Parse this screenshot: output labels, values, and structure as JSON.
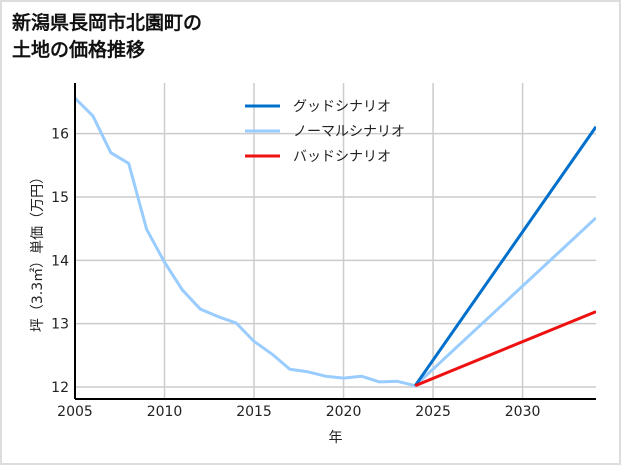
{
  "title_lines": [
    "新潟県長岡市北園町の",
    "土地の価格推移"
  ],
  "chart_data": {
    "type": "line",
    "title": "新潟県長岡市北園町の土地の価格推移",
    "xlabel": "年",
    "ylabel": "坪（3.3㎡）単価（万円）",
    "xlim": [
      2005,
      2034.1
    ],
    "ylim": [
      11.81,
      16.8
    ],
    "xticks": [
      2005,
      2010,
      2015,
      2020,
      2025,
      2030
    ],
    "yticks": [
      12,
      13,
      14,
      15,
      16
    ],
    "grid": true,
    "legend_position": "top-center",
    "series": [
      {
        "name": "グッドシナリオ",
        "color": "#0070cc",
        "x": [
          2024,
          2034.1
        ],
        "y": [
          12.02,
          16.11
        ]
      },
      {
        "name": "ノーマルシナリオ",
        "color": "#99ccff",
        "x": [
          2005,
          2006,
          2007,
          2008,
          2009,
          2010,
          2011,
          2012,
          2013,
          2014,
          2015,
          2016,
          2017,
          2018,
          2019,
          2020,
          2021,
          2022,
          2023,
          2024,
          2034.1
        ],
        "y": [
          16.56,
          16.28,
          15.7,
          15.53,
          14.49,
          13.97,
          13.53,
          13.23,
          13.11,
          13.01,
          12.72,
          12.52,
          12.28,
          12.24,
          12.17,
          12.14,
          12.17,
          12.08,
          12.09,
          12.02,
          14.67
        ]
      },
      {
        "name": "バッドシナリオ",
        "color": "#ee1111",
        "x": [
          2024,
          2034.1
        ],
        "y": [
          12.02,
          13.19
        ]
      }
    ]
  }
}
